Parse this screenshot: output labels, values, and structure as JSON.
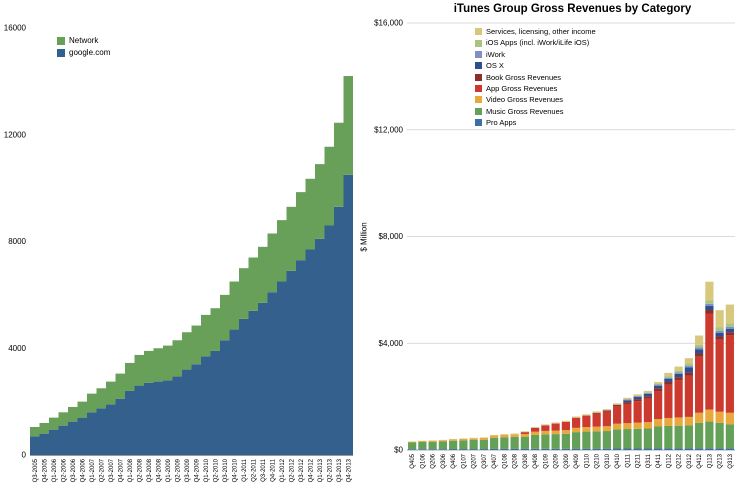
{
  "chart_data": [
    {
      "type": "area",
      "title": "",
      "xlabel": "",
      "ylabel": "",
      "ylim": [
        0,
        16000
      ],
      "grid": false,
      "legend_position": "top-left-inside",
      "y_ticks": [
        "16000",
        "12000",
        "8000",
        "4000",
        "0"
      ],
      "y_tick_values": [
        16000,
        12000,
        8000,
        4000,
        0
      ],
      "categories": [
        "Q3-2005",
        "Q4-2005",
        "Q1-2006",
        "Q2-2006",
        "Q3-2006",
        "Q4-2006",
        "Q1-2007",
        "Q2-2007",
        "Q3-2007",
        "Q4-2007",
        "Q1-2008",
        "Q2-2008",
        "Q3-2008",
        "Q4-2008",
        "Q1-2009",
        "Q2-2009",
        "Q3-2009",
        "Q4-2009",
        "Q1-2010",
        "Q2-2010",
        "Q3-2010",
        "Q4-2010",
        "Q1-2011",
        "Q2-2011",
        "Q3-2011",
        "Q4-2011",
        "Q1-2012",
        "Q2-2012",
        "Q3-2012",
        "Q4-2012",
        "Q1-2013",
        "Q2-2013",
        "Q3-2013",
        "Q4-2013"
      ],
      "series": [
        {
          "name": "Network",
          "color": "#68a05a",
          "values": [
            350,
            400,
            450,
            500,
            550,
            600,
            700,
            750,
            850,
            950,
            1050,
            1150,
            1200,
            1250,
            1300,
            1350,
            1400,
            1450,
            1550,
            1600,
            1700,
            1800,
            1900,
            2000,
            2100,
            2200,
            2300,
            2400,
            2550,
            2650,
            2800,
            2950,
            3150,
            3700
          ]
        },
        {
          "name": "google.com",
          "color": "#33608d",
          "values": [
            700,
            800,
            950,
            1100,
            1250,
            1400,
            1600,
            1750,
            1900,
            2100,
            2400,
            2600,
            2700,
            2750,
            2800,
            2950,
            3200,
            3400,
            3700,
            3900,
            4300,
            4700,
            5100,
            5400,
            5700,
            6100,
            6500,
            6900,
            7300,
            7700,
            8100,
            8600,
            9300,
            10500
          ]
        }
      ]
    },
    {
      "type": "bar",
      "title": "iTunes Group Gross Revenues by Category",
      "xlabel": "",
      "ylabel": "$ Million",
      "ylim": [
        0,
        16000
      ],
      "grid": true,
      "legend_position": "top-right-inside",
      "y_ticks": [
        "$16,000",
        "$12,000",
        "$8,000",
        "$4,000",
        "$0"
      ],
      "y_tick_values": [
        16000,
        12000,
        8000,
        4000,
        0
      ],
      "categories": [
        "Q405",
        "Q106",
        "Q206",
        "Q306",
        "Q406",
        "Q107",
        "Q207",
        "Q307",
        "Q407",
        "Q108",
        "Q208",
        "Q308",
        "Q408",
        "Q109",
        "Q209",
        "Q309",
        "Q409",
        "Q110",
        "Q210",
        "Q310",
        "Q410",
        "Q111",
        "Q211",
        "Q311",
        "Q411",
        "Q112",
        "Q212",
        "Q312",
        "Q412",
        "Q113",
        "Q213",
        "Q313"
      ],
      "series": [
        {
          "name": "Services, licensing, other income",
          "color": "#d8c87e",
          "values": [
            10,
            10,
            10,
            15,
            15,
            15,
            20,
            20,
            25,
            25,
            30,
            30,
            35,
            35,
            40,
            40,
            45,
            45,
            50,
            50,
            55,
            60,
            65,
            70,
            90,
            120,
            150,
            200,
            350,
            700,
            650,
            700
          ]
        },
        {
          "name": "iOS Apps (incl. iWork/iLife iOS)",
          "color": "#a9c47f",
          "values": [
            0,
            0,
            0,
            0,
            0,
            0,
            0,
            0,
            0,
            0,
            0,
            0,
            0,
            0,
            0,
            0,
            0,
            0,
            0,
            0,
            0,
            0,
            0,
            0,
            0,
            60,
            70,
            80,
            100,
            130,
            120,
            130
          ]
        },
        {
          "name": "iWork",
          "color": "#8090c7",
          "values": [
            0,
            0,
            0,
            0,
            0,
            0,
            0,
            0,
            0,
            0,
            0,
            0,
            0,
            0,
            0,
            0,
            0,
            0,
            0,
            0,
            0,
            30,
            35,
            40,
            45,
            50,
            55,
            60,
            65,
            80,
            75,
            75
          ]
        },
        {
          "name": "OS X",
          "color": "#2d4f8e",
          "values": [
            0,
            0,
            0,
            0,
            0,
            0,
            0,
            0,
            0,
            0,
            0,
            0,
            0,
            0,
            0,
            0,
            0,
            0,
            0,
            0,
            0,
            70,
            80,
            90,
            100,
            110,
            120,
            200,
            160,
            150,
            140,
            130
          ]
        },
        {
          "name": "Book Gross Revenues",
          "color": "#8c2f2b",
          "values": [
            0,
            0,
            0,
            0,
            0,
            0,
            0,
            0,
            0,
            0,
            0,
            0,
            0,
            0,
            0,
            0,
            0,
            0,
            40,
            50,
            60,
            70,
            80,
            90,
            100,
            100,
            110,
            110,
            120,
            130,
            120,
            120
          ]
        },
        {
          "name": "App Gross Revenues",
          "color": "#cc3a2f",
          "values": [
            0,
            0,
            0,
            0,
            0,
            0,
            0,
            0,
            0,
            0,
            0,
            70,
            140,
            210,
            260,
            310,
            380,
            430,
            480,
            540,
            650,
            720,
            800,
            880,
            1050,
            1250,
            1400,
            1550,
            2100,
            3600,
            2700,
            2900
          ]
        },
        {
          "name": "Video Gross Revenues",
          "color": "#e9a83c",
          "values": [
            30,
            35,
            40,
            45,
            50,
            55,
            60,
            65,
            80,
            90,
            95,
            100,
            120,
            130,
            135,
            140,
            160,
            170,
            175,
            180,
            210,
            220,
            230,
            240,
            280,
            300,
            310,
            320,
            380,
            450,
            420,
            430
          ]
        },
        {
          "name": "Music Gross Revenues",
          "color": "#64a058",
          "values": [
            250,
            270,
            280,
            290,
            310,
            330,
            340,
            350,
            420,
            440,
            450,
            460,
            520,
            540,
            550,
            560,
            620,
            640,
            650,
            660,
            720,
            730,
            740,
            750,
            820,
            840,
            850,
            860,
            950,
            1000,
            950,
            900
          ]
        },
        {
          "name": "Pro Apps",
          "color": "#3c6fa5",
          "values": [
            30,
            30,
            30,
            30,
            35,
            35,
            35,
            35,
            40,
            40,
            40,
            40,
            45,
            45,
            45,
            45,
            50,
            50,
            50,
            50,
            55,
            55,
            55,
            55,
            60,
            60,
            60,
            60,
            65,
            65,
            65,
            65
          ]
        }
      ]
    }
  ]
}
